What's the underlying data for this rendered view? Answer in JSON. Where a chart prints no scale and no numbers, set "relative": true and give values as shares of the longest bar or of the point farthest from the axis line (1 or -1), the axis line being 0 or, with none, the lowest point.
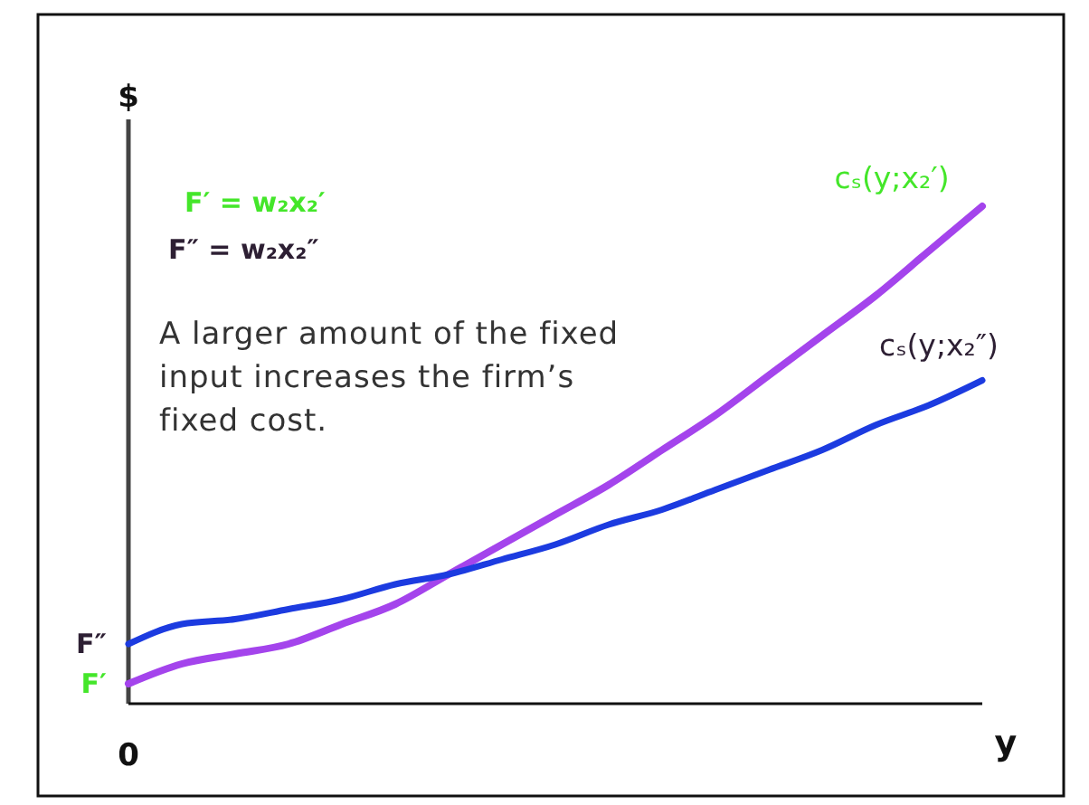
{
  "chart_data": {
    "type": "line",
    "relative": true,
    "ylabel": "$",
    "xlabel": "y",
    "line_style": "solid",
    "categories": [
      null,
      null,
      null,
      null,
      null,
      null,
      null,
      null,
      null,
      null,
      null,
      null,
      null,
      null,
      null,
      null,
      null
    ],
    "series": [
      {
        "name": "cₛ(y;x₂′)",
        "color": "#a444ec",
        "values": [
          0.04,
          0.08,
          0.1,
          0.12,
          0.16,
          0.2,
          0.26,
          0.32,
          0.38,
          0.44,
          0.51,
          0.58,
          0.66,
          0.74,
          0.82,
          0.91,
          1
        ]
      },
      {
        "name": "cₛ(y;x₂″)",
        "color": "#1c3be0",
        "values": [
          0.12,
          0.16,
          0.17,
          0.19,
          0.21,
          0.24,
          0.26,
          0.29,
          0.32,
          0.36,
          0.39,
          0.43,
          0.47,
          0.51,
          0.56,
          0.6,
          0.65
        ]
      }
    ],
    "annotations": [
      "F′ = w₂x₂′",
      "F″ = w₂x₂″",
      "A larger amount of the fixed input increases the firm’s fixed cost.",
      "F″",
      "F′",
      "0"
    ]
  }
}
